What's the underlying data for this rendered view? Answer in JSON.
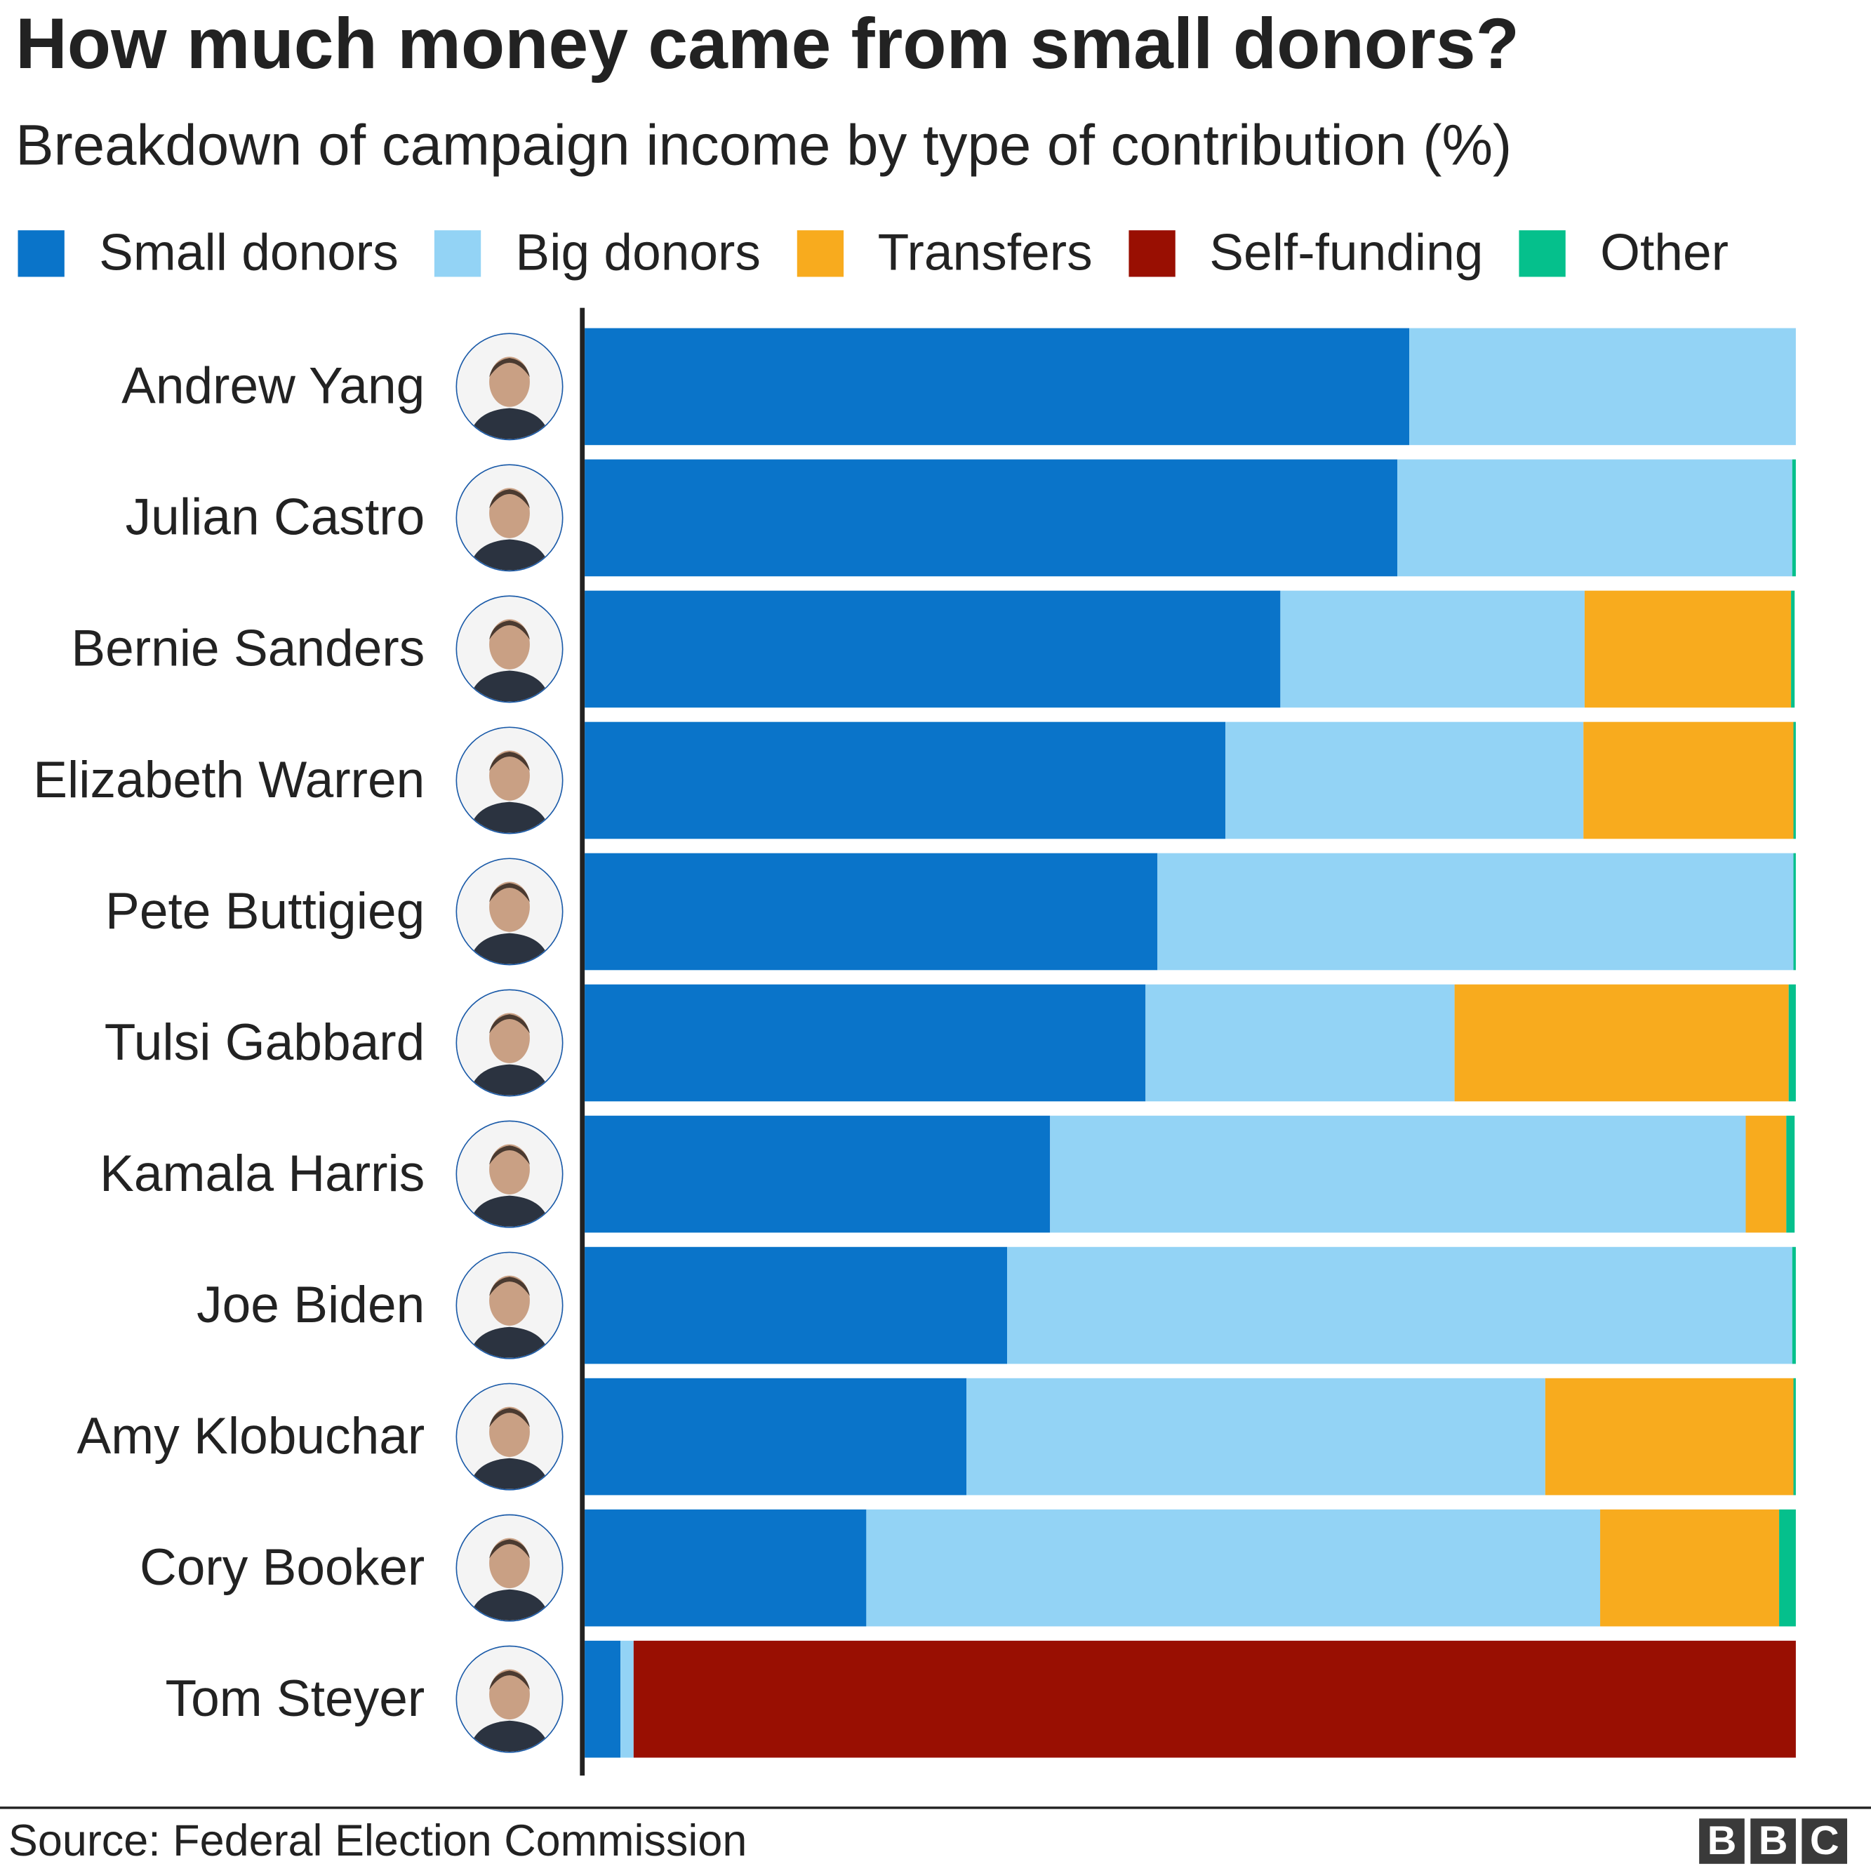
{
  "title": "How much money came from small donors?",
  "subtitle": "Breakdown of campaign income by type of contribution (%)",
  "source": "Source: Federal Election Commission",
  "logo": "BBC",
  "chart_data": {
    "type": "bar",
    "orientation": "horizontal",
    "stacked": true,
    "xlim": [
      0,
      100
    ],
    "legend_position": "top",
    "categories": [
      "Andrew Yang",
      "Julian Castro",
      "Bernie Sanders",
      "Elizabeth Warren",
      "Pete Buttigieg",
      "Tulsi Gabbard",
      "Kamala Harris",
      "Joe Biden",
      "Amy Klobuchar",
      "Cory Booker",
      "Tom Steyer"
    ],
    "series": [
      {
        "name": "Small donors",
        "color": "#0a74c9",
        "values": [
          68.1,
          67.1,
          57.4,
          52.9,
          47.3,
          46.3,
          38.4,
          34.9,
          31.5,
          23.3,
          3.0
        ]
      },
      {
        "name": "Big donors",
        "color": "#93d3f5",
        "values": [
          31.9,
          32.6,
          25.2,
          29.6,
          52.5,
          25.5,
          57.5,
          64.8,
          47.8,
          60.6,
          1.0
        ]
      },
      {
        "name": "Transfers",
        "color": "#f8ab1e",
        "values": [
          0,
          0,
          17.0,
          17.3,
          0,
          27.6,
          3.3,
          0,
          20.5,
          14.8,
          0
        ]
      },
      {
        "name": "Self-funding",
        "color": "#990f02",
        "values": [
          0,
          0,
          0,
          0,
          0,
          0,
          0,
          0,
          0,
          0,
          96.0
        ]
      },
      {
        "name": "Other",
        "color": "#05c08c",
        "values": [
          0,
          0.3,
          0.3,
          0.2,
          0.2,
          0.6,
          0.7,
          0.3,
          0.2,
          1.4,
          0
        ]
      }
    ]
  }
}
